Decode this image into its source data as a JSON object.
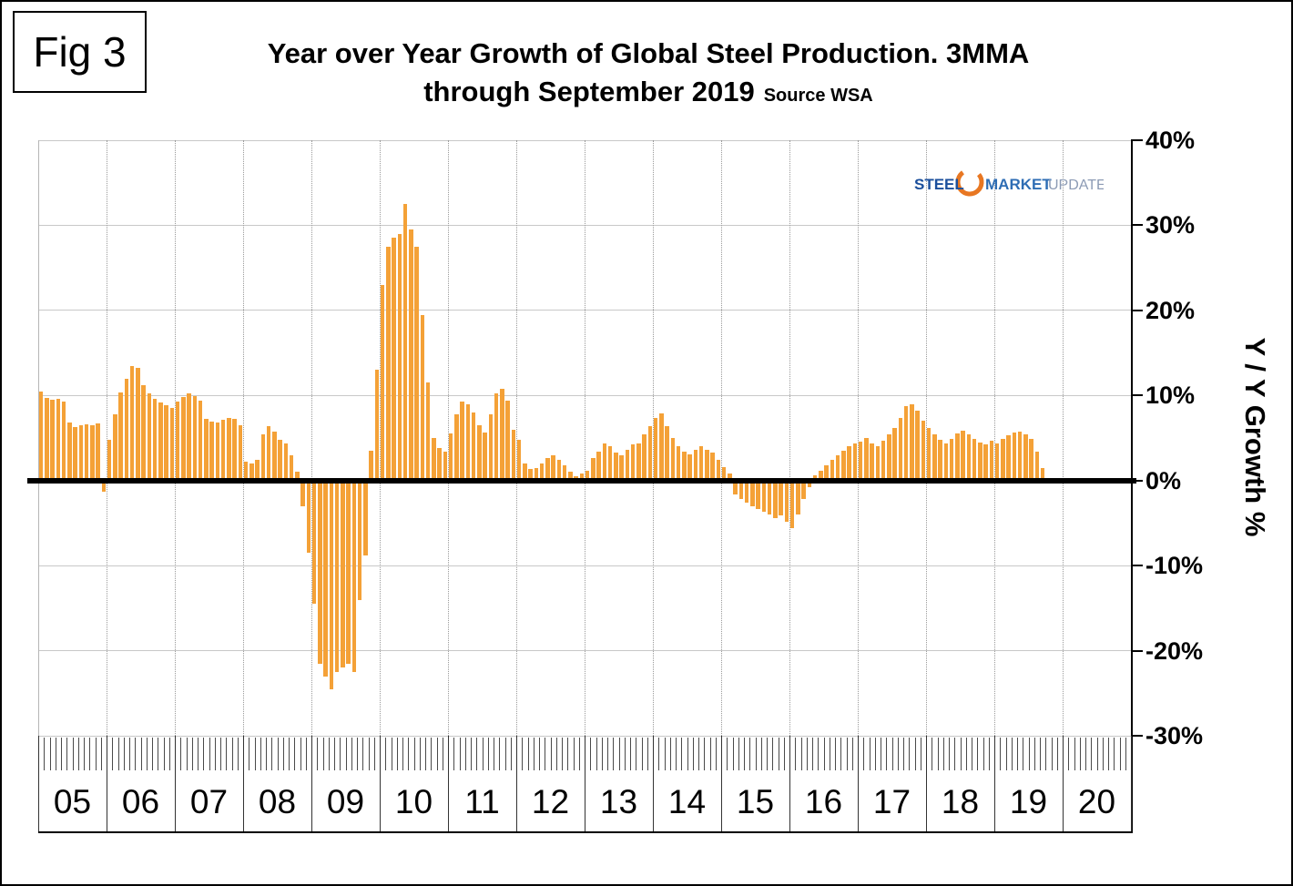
{
  "fig_label": "Fig 3",
  "title": {
    "line1": "Year over Year Growth of Global Steel Production. 3MMA",
    "line2": "through September 2019",
    "source": "Source WSA"
  },
  "logo": {
    "steel": "STEEL",
    "market": "MARKET",
    "update": "UPDATE"
  },
  "colors": {
    "bar": "#F4A137",
    "zero_line": "#000000",
    "grid": "#C8C8C8",
    "logo_orange": "#E87722",
    "logo_steel_blue": "#1B4F9C",
    "logo_market_blue": "#2E6DB4",
    "logo_update_gray": "#8C9BB5"
  },
  "chart_data": {
    "type": "bar",
    "title": "Year over Year Growth of Global Steel Production. 3MMA through September 2019",
    "source": "Source WSA",
    "ylabel": "Y / Y Growth %",
    "unit": "%",
    "frequency": "monthly",
    "ylim": [
      -30,
      40
    ],
    "grid": "horizontal light gray lines each 10%, dotted vertical lines at year boundaries, thick black zero line",
    "y_ticks": [
      {
        "value": 40,
        "label": "40%"
      },
      {
        "value": 30,
        "label": "30%"
      },
      {
        "value": 20,
        "label": "20%"
      },
      {
        "value": 10,
        "label": "10%"
      },
      {
        "value": 0,
        "label": "0%"
      },
      {
        "value": -10,
        "label": "-10%"
      },
      {
        "value": -20,
        "label": "-20%"
      },
      {
        "value": -30,
        "label": "-30%"
      }
    ],
    "years": [
      {
        "label": "05",
        "values": [
          10.5,
          9.7,
          9.5,
          9.6,
          9.3,
          6.8,
          6.3,
          6.5,
          6.6,
          6.5,
          6.7,
          -1.3
        ]
      },
      {
        "label": "06",
        "values": [
          4.8,
          7.8,
          10.3,
          12.0,
          13.5,
          13.2,
          11.2,
          10.2,
          9.6,
          9.2,
          8.8,
          8.5
        ]
      },
      {
        "label": "07",
        "values": [
          9.3,
          9.8,
          10.2,
          9.9,
          9.4,
          7.2,
          6.9,
          6.8,
          7.1,
          7.4,
          7.2,
          6.5
        ]
      },
      {
        "label": "08",
        "values": [
          2.2,
          2.0,
          2.4,
          5.4,
          6.4,
          5.8,
          4.8,
          4.4,
          3.0,
          1.0,
          -3.0,
          -8.5
        ]
      },
      {
        "label": "09",
        "values": [
          -14.5,
          -21.5,
          -23.0,
          -24.5,
          -22.5,
          -22.0,
          -21.5,
          -22.5,
          -14.0,
          -8.8,
          3.5,
          13.0
        ]
      },
      {
        "label": "10",
        "values": [
          23.0,
          27.5,
          28.5,
          29.0,
          32.5,
          29.5,
          27.5,
          19.5,
          11.5,
          5.0,
          3.8,
          3.4
        ]
      },
      {
        "label": "11",
        "values": [
          5.5,
          7.8,
          9.3,
          9.0,
          8.0,
          6.5,
          5.6,
          7.8,
          10.2,
          10.8,
          9.4,
          6.0
        ]
      },
      {
        "label": "12",
        "values": [
          4.8,
          2.0,
          1.4,
          1.5,
          2.0,
          2.6,
          3.0,
          2.4,
          1.8,
          1.0,
          0.5,
          0.8
        ]
      },
      {
        "label": "13",
        "values": [
          1.2,
          2.6,
          3.4,
          4.4,
          4.0,
          3.3,
          3.0,
          3.6,
          4.2,
          4.4,
          5.4,
          6.4
        ]
      },
      {
        "label": "14",
        "values": [
          7.4,
          7.9,
          6.4,
          5.0,
          4.0,
          3.4,
          3.1,
          3.6,
          4.0,
          3.6,
          3.3,
          2.4
        ]
      },
      {
        "label": "15",
        "values": [
          1.6,
          0.8,
          -1.6,
          -2.2,
          -2.6,
          -3.0,
          -3.3,
          -3.7,
          -4.0,
          -4.4,
          -4.1,
          -4.8
        ]
      },
      {
        "label": "16",
        "values": [
          -5.6,
          -4.0,
          -2.2,
          -0.8,
          0.6,
          1.2,
          1.8,
          2.4,
          3.0,
          3.5,
          4.0,
          4.4
        ]
      },
      {
        "label": "17",
        "values": [
          4.6,
          5.0,
          4.4,
          4.0,
          4.7,
          5.4,
          6.2,
          7.4,
          8.7,
          9.0,
          8.2,
          7.0
        ]
      },
      {
        "label": "18",
        "values": [
          6.2,
          5.4,
          4.8,
          4.4,
          4.9,
          5.5,
          5.9,
          5.4,
          4.9,
          4.5,
          4.3,
          4.7
        ]
      },
      {
        "label": "19",
        "values": [
          4.4,
          4.9,
          5.3,
          5.6,
          5.8,
          5.4,
          4.9,
          3.4,
          1.5
        ]
      },
      {
        "label": "20",
        "values": []
      }
    ]
  }
}
